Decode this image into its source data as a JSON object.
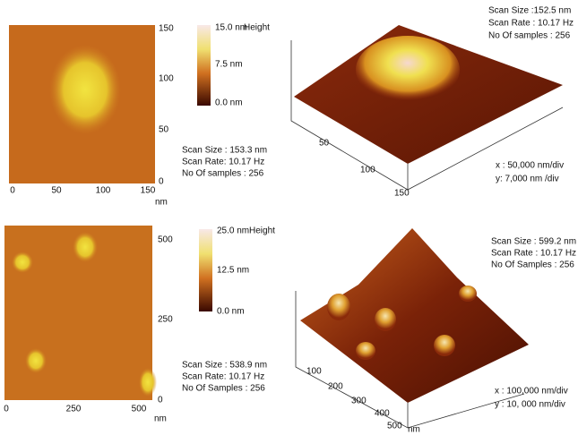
{
  "top_left": {
    "y_ticks": [
      "150",
      "100",
      "50",
      "0"
    ],
    "x_ticks": [
      "0",
      "50",
      "100",
      "150"
    ],
    "unit": "nm",
    "colorbar": {
      "labels": [
        "15.0 nm",
        "7.5 nm",
        "0.0 nm"
      ],
      "title": "Height"
    },
    "info": [
      "Scan Size : 153.3 nm",
      "Scan Rate: 10.17 Hz",
      "No Of samples : 256"
    ]
  },
  "top_right": {
    "info": [
      "Scan Size :152.5 nm",
      "Scan Rate : 10.17 Hz",
      "No Of samples : 256"
    ],
    "ticks": [
      "50",
      "100",
      "150"
    ],
    "scale": [
      "x : 50,000 nm/div",
      "y: 7,000 nm /div"
    ]
  },
  "bottom_left": {
    "y_ticks": [
      "500",
      "250",
      "0"
    ],
    "x_ticks": [
      "0",
      "250",
      "500"
    ],
    "unit": "nm",
    "colorbar": {
      "labels": [
        "25.0 nm",
        "12.5 nm",
        "0.0 nm"
      ],
      "title": "Height"
    },
    "info": [
      "Scan Size : 538.9 nm",
      "Scan Rate: 10.17 Hz",
      "No Of Samples : 256"
    ]
  },
  "bottom_right": {
    "info": [
      "Scan Size : 599.2 nm",
      "Scan Rate : 10.17 Hz",
      "No Of Samples : 256"
    ],
    "ticks": [
      "100",
      "200",
      "300",
      "400",
      "500"
    ],
    "unit": "nm",
    "scale": [
      "x : 100,000 nm/div",
      "y : 10, 000 nm/div"
    ]
  }
}
